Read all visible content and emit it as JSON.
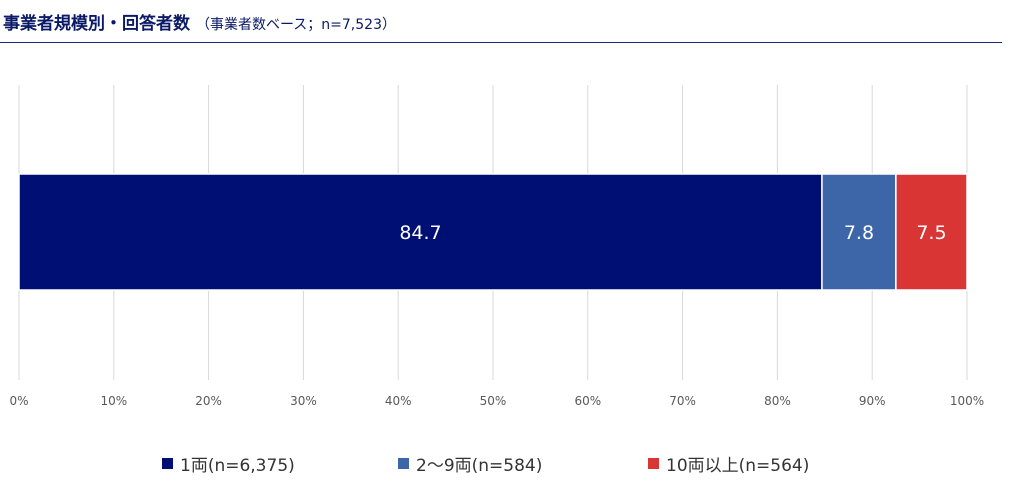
{
  "header": {
    "title": "事業者規模別・回答者数",
    "subtitle": "（事業者数ベース；n=7,523）"
  },
  "colors": {
    "series_1": "#000f73",
    "series_2": "#3d66a8",
    "series_3": "#d93535",
    "grid": "#d9d9d9",
    "header_rule": "#1a2a6c"
  },
  "chart_data": {
    "type": "bar",
    "orientation": "horizontal",
    "stacked": "percent",
    "categories": [
      ""
    ],
    "series": [
      {
        "name": "1両(n=6,375)",
        "values": [
          84.7
        ]
      },
      {
        "name": "2〜9両(n=584)",
        "values": [
          7.8
        ]
      },
      {
        "name": "10両以上(n=564)",
        "values": [
          7.5
        ]
      }
    ],
    "xlim": [
      0,
      100
    ],
    "xticks": [
      "0%",
      "10%",
      "20%",
      "30%",
      "40%",
      "50%",
      "60%",
      "70%",
      "80%",
      "90%",
      "100%"
    ],
    "data_labels": [
      "84.7",
      "7.8",
      "7.5"
    ],
    "grid": true,
    "legend_position": "bottom"
  }
}
